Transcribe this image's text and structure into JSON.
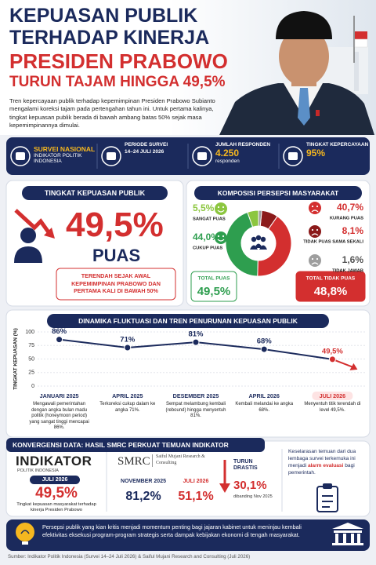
{
  "header": {
    "title_lines": [
      "KEPUASAN PUBLIK",
      "TERHADAP KINERJA",
      "PRESIDEN PRABOWO",
      "TURUN TAJAM HINGGA 49,5%"
    ],
    "intro": "Tren kepercayaan publik terhadap kepemimpinan Presiden Prabowo Subianto mengalami koreksi tajam pada pertengahan tahun ini. Untuk pertama kalinya, tingkat kepuasan publik berada di bawah ambang batas 50% sejak masa kepemimpinannya dimulai."
  },
  "stats": [
    {
      "label": "SURVEI NASIONAL",
      "sub": "INDIKATOR POLITIK INDONESIA"
    },
    {
      "label": "PERIODE SURVEI",
      "sub": "14–24 JULI 2026"
    },
    {
      "label": "JUMLAH RESPONDEN",
      "value": "4.250",
      "sub": "responden"
    },
    {
      "label": "TINGKAT KEPERCAYAAN",
      "value": "95%"
    }
  ],
  "satisfaction": {
    "title": "TINGKAT KEPUASAN PUBLIK",
    "value": "49,5%",
    "unit": "PUAS",
    "note": "TERENDAH SEJAK AWAL KEPEMIMPINAN PRABOWO DAN PERTAMA KALI DI BAWAH 50%"
  },
  "composition_totals": [
    {
      "label": "TOTAL PUAS",
      "value": "49,5%"
    },
    {
      "label": "TOTAL TIDAK PUAS",
      "value": "48,8%"
    }
  ],
  "chart_data": [
    {
      "type": "pie",
      "title": "KOMPOSISI PERSEPSI MASYARAKAT",
      "categories": [
        "SANGAT PUAS",
        "CUKUP PUAS",
        "KURANG PUAS",
        "TIDAK PUAS SAMA SEKALI",
        "TIDAK JAWAB"
      ],
      "values": [
        5.5,
        44.0,
        40.7,
        8.1,
        1.6
      ],
      "value_labels": [
        "5,5%",
        "44,0%",
        "40,7%",
        "8,1%",
        "1,6%"
      ],
      "colors": [
        "#8cc63f",
        "#2e9e4f",
        "#d32f2f",
        "#8b1a1a",
        "#9e9e9e"
      ]
    },
    {
      "type": "line",
      "title": "DINAMIKA FLUKTUASI DAN TREN PENURUNAN KEPUASAN PUBLIK",
      "y_label": "TINGKAT KEPUASAN (%)",
      "categories": [
        "JANUARI 2025",
        "APRIL 2025",
        "DESEMBER 2025",
        "APRIL 2026",
        "JULI 2026"
      ],
      "values": [
        86,
        71,
        81,
        68,
        49.5
      ],
      "value_labels": [
        "86%",
        "71%",
        "81%",
        "68%",
        "49,5%"
      ],
      "notes": [
        "Mengawali pemerintahan dengan angka bulan madu politik (honeymoon period) yang sangat tinggi mencapai 86%.",
        "Terkoreksi cukup dalam ke angka 71%.",
        "Sempat melambung kembali (rebound) hingga menyentuh 81%.",
        "Kembali melandai ke angka 68%.",
        "Menyentuh titik terendah di level 49,5%."
      ],
      "color": "#1b2a5c",
      "ylim": [
        0,
        100
      ],
      "yticks": [
        0,
        25,
        50,
        75,
        100
      ],
      "grid": true
    }
  ],
  "convergence": {
    "title": "KONVERGENSI DATA: HASIL SMRC PERKUAT TEMUAN INDIKATOR",
    "indikator": {
      "logo": "INDIKATOR",
      "logo_sub": "POLITIK INDONESIA",
      "period": "JULI 2026",
      "value": "49,5%",
      "note": "Tingkat kepuasan masyarakat terhadap kinerja Presiden Prabowo"
    },
    "smrc": {
      "logo": "SMRC",
      "logo_sub": "Saiful Mujani Research & Consulting",
      "periods": [
        "NOVEMBER 2025",
        "JULI 2026"
      ],
      "values": [
        "81,2%",
        "51,1%"
      ],
      "drop_label": "TURUN DRASTIS",
      "drop_value": "30,1%",
      "drop_note": "dibanding Nov 2025"
    },
    "conclusion": {
      "before": "Keselarasan temuan dari dua lembaga survei terkemuka ini menjadi",
      "highlight": "alarm evaluasi",
      "after": "bagi pemerintah."
    }
  },
  "footer": {
    "text": "Persepsi publik yang kian kritis menjadi momentum penting bagi jajaran kabinet untuk meninjau kembali efektivitas eksekusi program-program strategis serta dampak kebijakan ekonomi di tengah masyarakat.",
    "source": "Sumber: Indikator Politik Indonesia (Survei 14–24 Juli 2026) & Saiful Mujani Research and Consulting (Juli 2026)"
  }
}
